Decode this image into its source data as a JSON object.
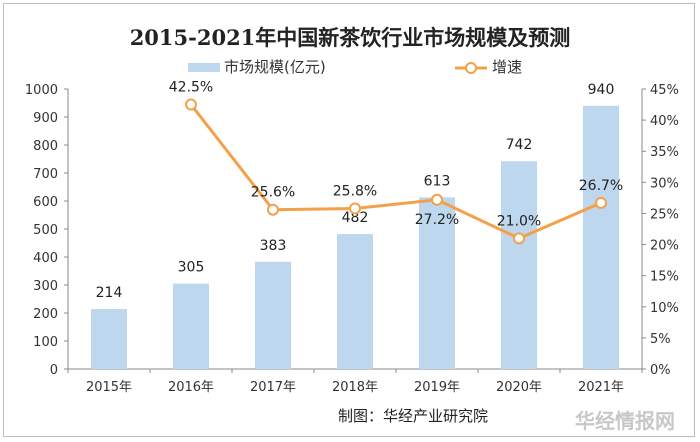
{
  "chart_data": {
    "type": "bar+line",
    "title": "2015-2021年中国新茶饮行业市场规模及预测",
    "categories": [
      "2015年",
      "2016年",
      "2017年",
      "2018年",
      "2019年",
      "2020年",
      "2021年"
    ],
    "series": [
      {
        "name": "市场规模(亿元)",
        "type": "bar",
        "axis": "left",
        "values": [
          214,
          305,
          383,
          482,
          613,
          742,
          940
        ],
        "labels": [
          "214",
          "305",
          "383",
          "482",
          "613",
          "742",
          "940"
        ],
        "color": "#bdd7ee"
      },
      {
        "name": "增速",
        "type": "line",
        "axis": "right",
        "values": [
          null,
          42.5,
          25.6,
          25.8,
          27.2,
          21.0,
          26.7
        ],
        "labels": [
          "",
          "42.5%",
          "25.6%",
          "25.8%",
          "27.2%",
          "21.0%",
          "26.7%"
        ],
        "color": "#f4a048"
      }
    ],
    "left_axis": {
      "range": [
        0,
        1000
      ],
      "ticks": [
        "0",
        "100",
        "200",
        "300",
        "400",
        "500",
        "600",
        "700",
        "800",
        "900",
        "1000"
      ]
    },
    "right_axis": {
      "range": [
        0,
        45
      ],
      "ticks": [
        "0%",
        "5%",
        "10%",
        "15%",
        "20%",
        "25%",
        "30%",
        "35%",
        "40%",
        "45%"
      ]
    },
    "legend_placement": "top",
    "grid": false
  },
  "source": "制图：华经产业研究院",
  "watermark": "华经情报网"
}
